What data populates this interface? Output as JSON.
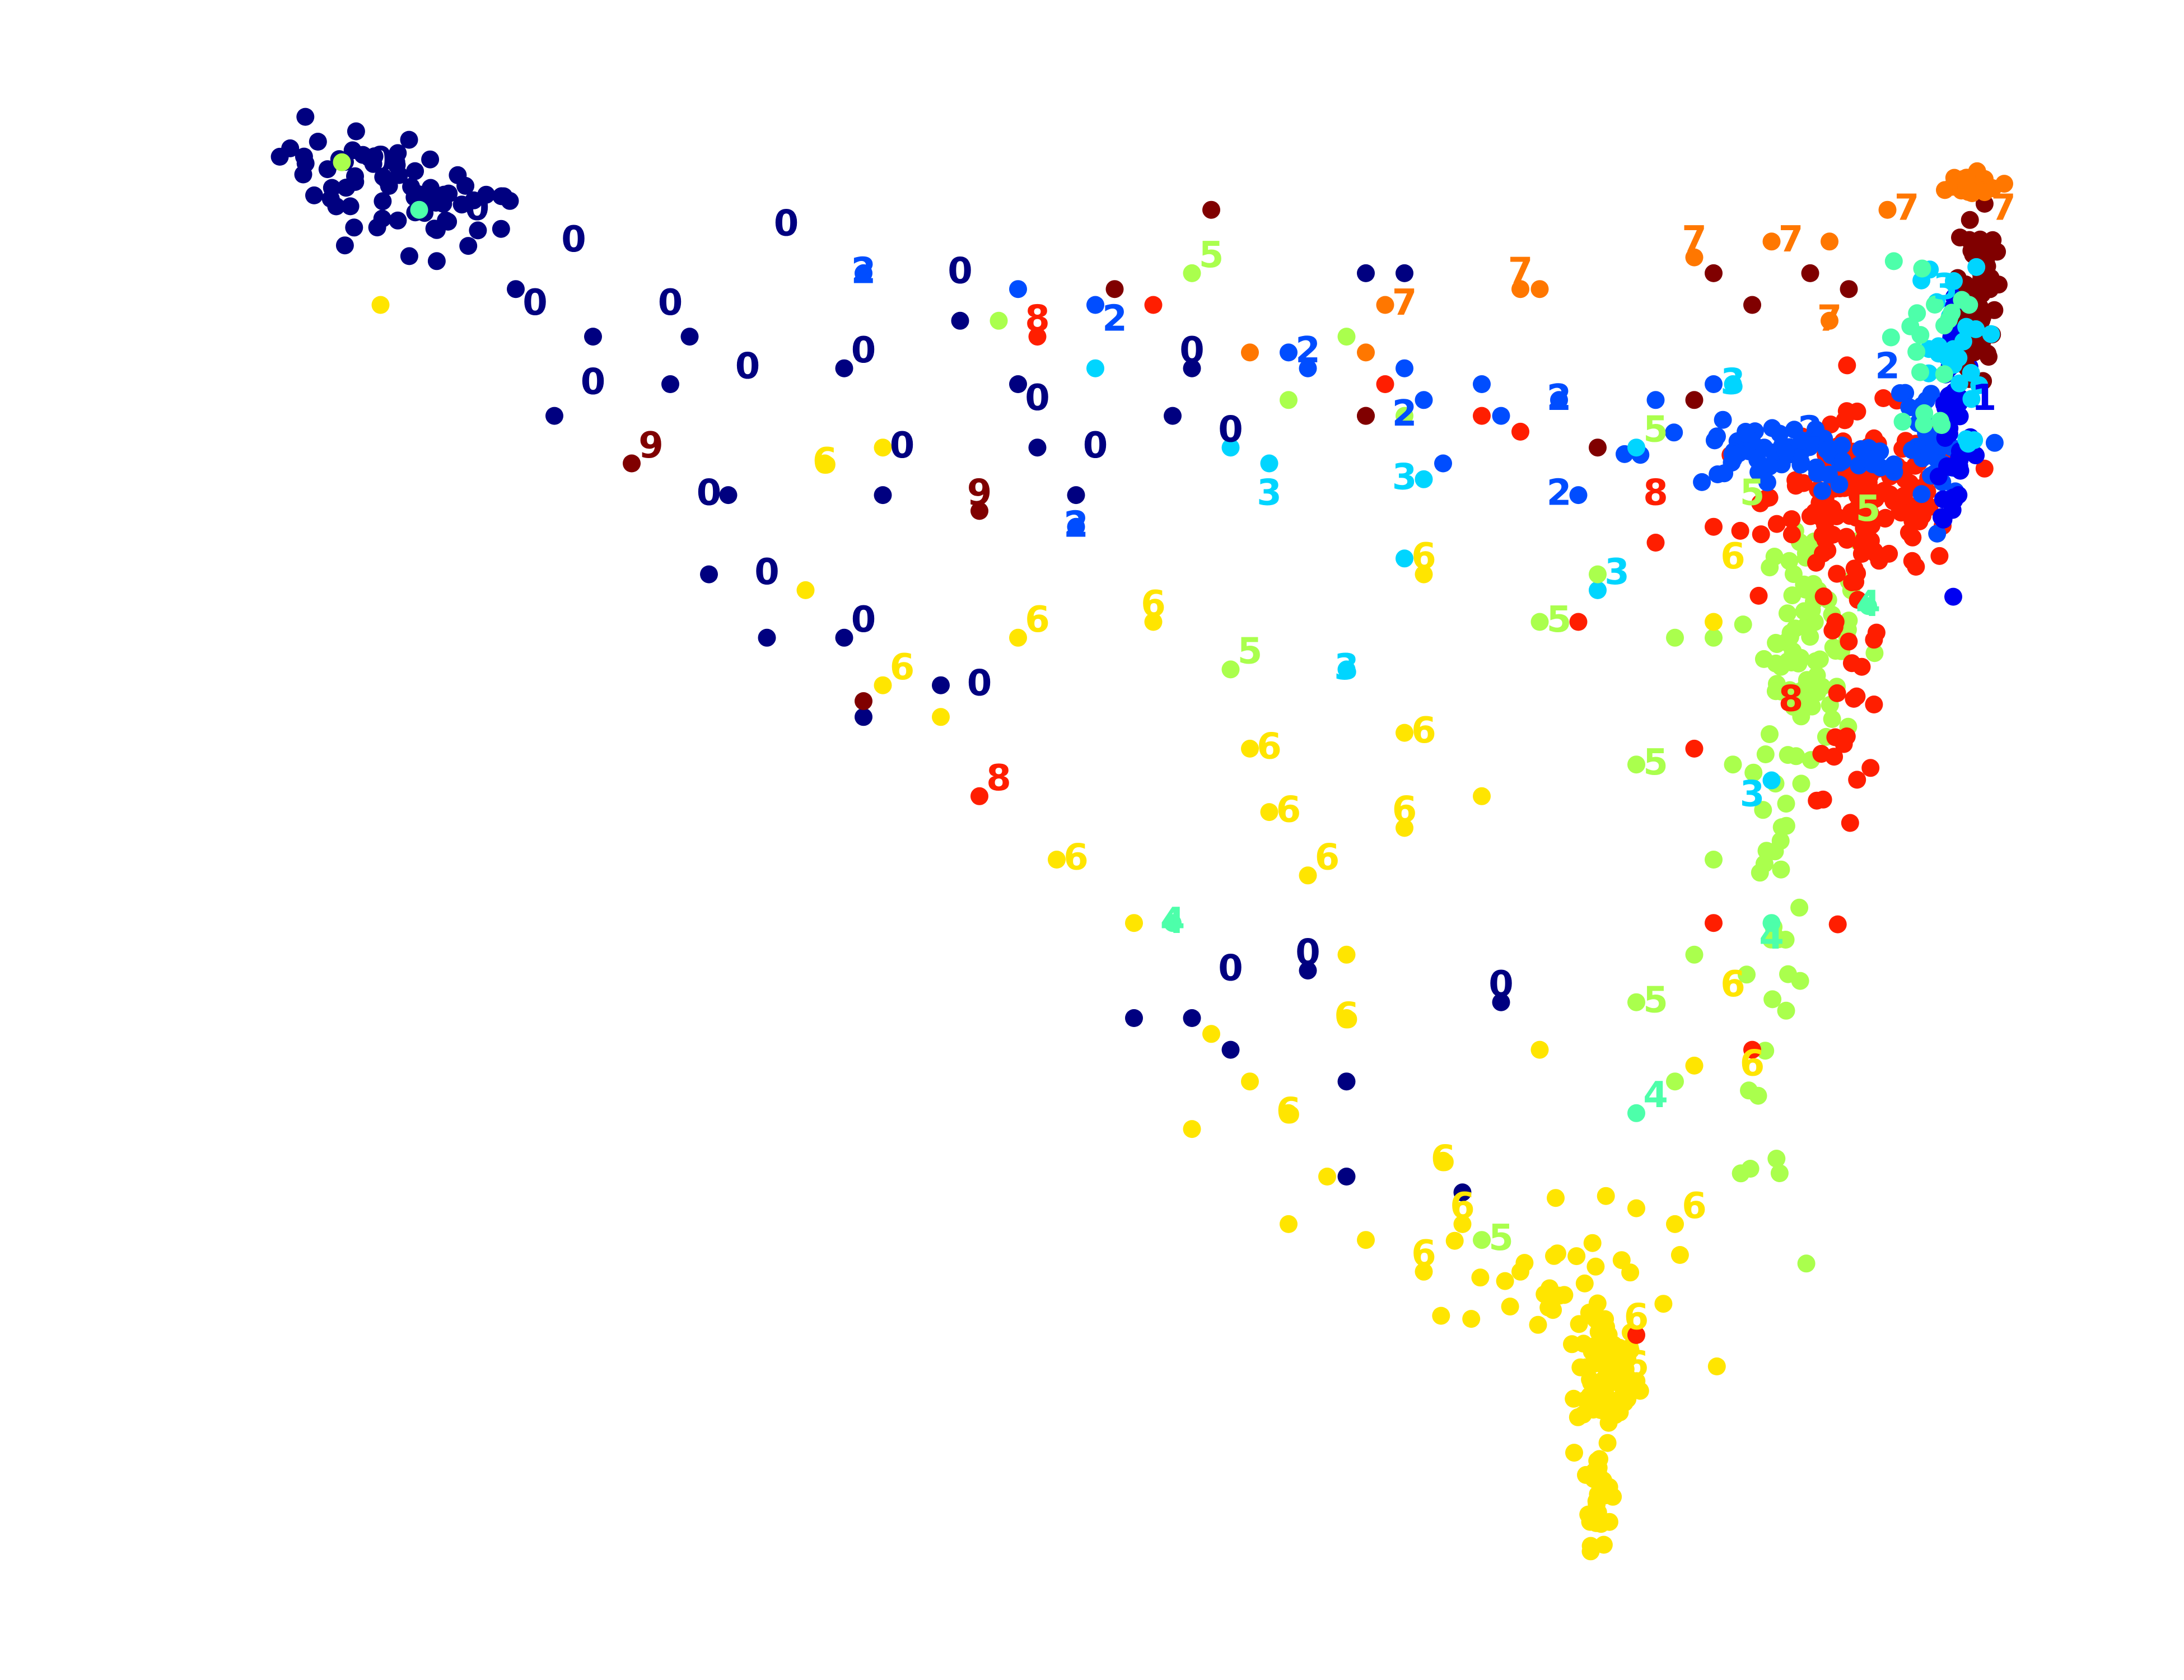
{
  "chart_data": {
    "type": "scatter",
    "title": "",
    "xlabel": "",
    "ylabel": "",
    "axes_visible": false,
    "grid": false,
    "legend": "none",
    "xlim": [
      0,
      100
    ],
    "ylim": [
      0,
      100
    ],
    "class_colors": {
      "0": "#000080",
      "1": "#0000f1",
      "2": "#004dff",
      "3": "#00d5ff",
      "4": "#4dffaa",
      "5": "#aaff4d",
      "6": "#ffe500",
      "7": "#ff7700",
      "8": "#ff1e00",
      "9": "#800000"
    },
    "clusters": [
      {
        "cls": "0",
        "cx": 12,
        "cy": 92,
        "sx": 3.2,
        "sy": 1.6,
        "n": 70,
        "rot": -28
      },
      {
        "cls": "6",
        "cx": 74.5,
        "cy": 17.5,
        "sx": 0.8,
        "sy": 1.8,
        "n": 90
      },
      {
        "cls": "6",
        "cx": 74,
        "cy": 10.5,
        "sx": 0.35,
        "sy": 1.8,
        "n": 30
      },
      {
        "cls": "6",
        "cx": 72,
        "cy": 23,
        "sx": 3,
        "sy": 2.5,
        "n": 30
      },
      {
        "cls": "5",
        "cx": 85,
        "cy": 64,
        "sx": 1.2,
        "sy": 3.5,
        "n": 80
      },
      {
        "cls": "5",
        "cx": 83,
        "cy": 45,
        "sx": 0.8,
        "sy": 8,
        "n": 35
      },
      {
        "cls": "8",
        "cx": 88,
        "cy": 73,
        "sx": 2.5,
        "sy": 2.5,
        "n": 160
      },
      {
        "cls": "8",
        "cx": 87,
        "cy": 62,
        "sx": 1,
        "sy": 4,
        "n": 30
      },
      {
        "cls": "2",
        "cx": 83.5,
        "cy": 75.5,
        "sx": 3.5,
        "sy": 1,
        "n": 70
      },
      {
        "cls": "2",
        "cx": 91,
        "cy": 76,
        "sx": 0.8,
        "sy": 3,
        "n": 30
      },
      {
        "cls": "1",
        "cx": 92.5,
        "cy": 78,
        "sx": 0.5,
        "sy": 4,
        "n": 50
      },
      {
        "cls": "9",
        "cx": 93.8,
        "cy": 86,
        "sx": 0.4,
        "sy": 3,
        "n": 55
      },
      {
        "cls": "7",
        "cx": 93,
        "cy": 92.5,
        "sx": 1,
        "sy": 0.4,
        "n": 30
      },
      {
        "cls": "3",
        "cx": 92,
        "cy": 82,
        "sx": 1,
        "sy": 3,
        "n": 25
      },
      {
        "cls": "4",
        "cx": 91,
        "cy": 82,
        "sx": 1,
        "sy": 3,
        "n": 20
      }
    ],
    "points": [
      {
        "x": 35,
        "y": 81,
        "cls": "0"
      },
      {
        "x": 41,
        "y": 84,
        "cls": "0"
      },
      {
        "x": 44,
        "y": 80,
        "cls": "0"
      },
      {
        "x": 47,
        "y": 73,
        "cls": "0"
      },
      {
        "x": 53,
        "y": 81,
        "cls": "0"
      },
      {
        "x": 29,
        "y": 73,
        "cls": "0"
      },
      {
        "x": 37,
        "y": 73,
        "cls": "0"
      },
      {
        "x": 31,
        "y": 64,
        "cls": "0"
      },
      {
        "x": 35,
        "y": 64,
        "cls": "0"
      },
      {
        "x": 40,
        "y": 61,
        "cls": "0"
      },
      {
        "x": 26,
        "y": 80,
        "cls": "0"
      },
      {
        "x": 22,
        "y": 83,
        "cls": "0"
      },
      {
        "x": 28,
        "y": 68,
        "cls": "0"
      },
      {
        "x": 50,
        "y": 40,
        "cls": "0"
      },
      {
        "x": 53,
        "y": 40,
        "cls": "0"
      },
      {
        "x": 55,
        "y": 38,
        "cls": "0"
      },
      {
        "x": 59,
        "y": 43,
        "cls": "0"
      },
      {
        "x": 61,
        "y": 36,
        "cls": "0"
      },
      {
        "x": 69,
        "y": 41,
        "cls": "0"
      },
      {
        "x": 18,
        "y": 86,
        "cls": "0"
      },
      {
        "x": 20,
        "y": 78,
        "cls": "0"
      },
      {
        "x": 45,
        "y": 76,
        "cls": "0"
      },
      {
        "x": 62,
        "y": 87,
        "cls": "0"
      },
      {
        "x": 64,
        "y": 87,
        "cls": "0"
      },
      {
        "x": 52,
        "y": 78,
        "cls": "0"
      },
      {
        "x": 27,
        "y": 83,
        "cls": "0"
      },
      {
        "x": 36,
        "y": 59,
        "cls": "0"
      },
      {
        "x": 61,
        "y": 30,
        "cls": "0"
      },
      {
        "x": 67,
        "y": 29,
        "cls": "0"
      },
      {
        "x": 36,
        "y": 87,
        "cls": "2"
      },
      {
        "x": 48,
        "y": 85,
        "cls": "2"
      },
      {
        "x": 58,
        "y": 82,
        "cls": "2"
      },
      {
        "x": 47,
        "y": 71,
        "cls": "2"
      },
      {
        "x": 59,
        "y": 81,
        "cls": "2"
      },
      {
        "x": 64,
        "y": 81,
        "cls": "2"
      },
      {
        "x": 65,
        "y": 79,
        "cls": "2"
      },
      {
        "x": 72,
        "y": 79,
        "cls": "2"
      },
      {
        "x": 73,
        "y": 73,
        "cls": "2"
      },
      {
        "x": 44,
        "y": 86,
        "cls": "2"
      },
      {
        "x": 68,
        "y": 80,
        "cls": "2"
      },
      {
        "x": 69,
        "y": 78,
        "cls": "2"
      },
      {
        "x": 66,
        "y": 75,
        "cls": "2"
      },
      {
        "x": 77,
        "y": 79,
        "cls": "2"
      },
      {
        "x": 80,
        "y": 80,
        "cls": "2"
      },
      {
        "x": 57,
        "y": 75,
        "cls": "3"
      },
      {
        "x": 65,
        "y": 74,
        "cls": "3"
      },
      {
        "x": 64,
        "y": 69,
        "cls": "3"
      },
      {
        "x": 61,
        "y": 62,
        "cls": "3"
      },
      {
        "x": 74,
        "y": 67,
        "cls": "3"
      },
      {
        "x": 81,
        "y": 80,
        "cls": "3"
      },
      {
        "x": 83,
        "y": 55,
        "cls": "3"
      },
      {
        "x": 48,
        "y": 81,
        "cls": "3"
      },
      {
        "x": 55,
        "y": 76,
        "cls": "3"
      },
      {
        "x": 76,
        "y": 76,
        "cls": "3"
      },
      {
        "x": 52,
        "y": 46,
        "cls": "4"
      },
      {
        "x": 76,
        "y": 34,
        "cls": "4"
      },
      {
        "x": 83,
        "y": 46,
        "cls": "4"
      },
      {
        "x": 88,
        "y": 66,
        "cls": "4"
      },
      {
        "x": 13,
        "y": 91,
        "cls": "4"
      },
      {
        "x": 53,
        "y": 87,
        "cls": "5"
      },
      {
        "x": 55,
        "y": 62,
        "cls": "5"
      },
      {
        "x": 71,
        "y": 65,
        "cls": "5"
      },
      {
        "x": 78,
        "y": 64,
        "cls": "5"
      },
      {
        "x": 76,
        "y": 56,
        "cls": "5"
      },
      {
        "x": 76,
        "y": 41,
        "cls": "5"
      },
      {
        "x": 68,
        "y": 26,
        "cls": "5"
      },
      {
        "x": 58,
        "y": 79,
        "cls": "5"
      },
      {
        "x": 64,
        "y": 78,
        "cls": "5"
      },
      {
        "x": 74,
        "y": 68,
        "cls": "5"
      },
      {
        "x": 80,
        "y": 64,
        "cls": "5"
      },
      {
        "x": 81,
        "y": 56,
        "cls": "5"
      },
      {
        "x": 80,
        "y": 50,
        "cls": "5"
      },
      {
        "x": 79,
        "y": 44,
        "cls": "5"
      },
      {
        "x": 78,
        "y": 36,
        "cls": "5"
      },
      {
        "x": 9,
        "y": 94,
        "cls": "5"
      },
      {
        "x": 43,
        "y": 84,
        "cls": "5"
      },
      {
        "x": 61,
        "y": 83,
        "cls": "5"
      },
      {
        "x": 34,
        "y": 75,
        "cls": "6"
      },
      {
        "x": 37,
        "y": 61,
        "cls": "6"
      },
      {
        "x": 44,
        "y": 64,
        "cls": "6"
      },
      {
        "x": 51,
        "y": 65,
        "cls": "6"
      },
      {
        "x": 56,
        "y": 57,
        "cls": "6"
      },
      {
        "x": 57,
        "y": 53,
        "cls": "6"
      },
      {
        "x": 46,
        "y": 50,
        "cls": "6"
      },
      {
        "x": 59,
        "y": 49,
        "cls": "6"
      },
      {
        "x": 65,
        "y": 68,
        "cls": "6"
      },
      {
        "x": 64,
        "y": 58,
        "cls": "6"
      },
      {
        "x": 64,
        "y": 52,
        "cls": "6"
      },
      {
        "x": 61,
        "y": 40,
        "cls": "6"
      },
      {
        "x": 58,
        "y": 34,
        "cls": "6"
      },
      {
        "x": 66,
        "y": 31,
        "cls": "6"
      },
      {
        "x": 67,
        "y": 27,
        "cls": "6"
      },
      {
        "x": 58,
        "y": 27,
        "cls": "6"
      },
      {
        "x": 65,
        "y": 24,
        "cls": "6"
      },
      {
        "x": 53,
        "y": 33,
        "cls": "6"
      },
      {
        "x": 33,
        "y": 67,
        "cls": "6"
      },
      {
        "x": 40,
        "y": 59,
        "cls": "6"
      },
      {
        "x": 50,
        "y": 46,
        "cls": "6"
      },
      {
        "x": 54,
        "y": 39,
        "cls": "6"
      },
      {
        "x": 61,
        "y": 44,
        "cls": "6"
      },
      {
        "x": 68,
        "y": 54,
        "cls": "6"
      },
      {
        "x": 71,
        "y": 38,
        "cls": "6"
      },
      {
        "x": 76,
        "y": 28,
        "cls": "6"
      },
      {
        "x": 79,
        "y": 37,
        "cls": "6"
      },
      {
        "x": 80,
        "y": 65,
        "cls": "6"
      },
      {
        "x": 11,
        "y": 85,
        "cls": "6"
      },
      {
        "x": 37,
        "y": 76,
        "cls": "6"
      },
      {
        "x": 78,
        "y": 27,
        "cls": "6"
      },
      {
        "x": 60,
        "y": 30,
        "cls": "6"
      },
      {
        "x": 70,
        "y": 24,
        "cls": "6"
      },
      {
        "x": 62,
        "y": 26,
        "cls": "6"
      },
      {
        "x": 56,
        "y": 36,
        "cls": "6"
      },
      {
        "x": 63,
        "y": 85,
        "cls": "7"
      },
      {
        "x": 70,
        "y": 86,
        "cls": "7"
      },
      {
        "x": 79,
        "y": 88,
        "cls": "7"
      },
      {
        "x": 83,
        "y": 89,
        "cls": "7"
      },
      {
        "x": 86,
        "y": 84,
        "cls": "7"
      },
      {
        "x": 89,
        "y": 91,
        "cls": "7"
      },
      {
        "x": 56,
        "y": 82,
        "cls": "7"
      },
      {
        "x": 62,
        "y": 82,
        "cls": "7"
      },
      {
        "x": 71,
        "y": 86,
        "cls": "7"
      },
      {
        "x": 86,
        "y": 89,
        "cls": "7"
      },
      {
        "x": 45,
        "y": 83,
        "cls": "8"
      },
      {
        "x": 42,
        "y": 54,
        "cls": "8"
      },
      {
        "x": 62,
        "y": 78,
        "cls": "8"
      },
      {
        "x": 70,
        "y": 77,
        "cls": "8"
      },
      {
        "x": 77,
        "y": 70,
        "cls": "8"
      },
      {
        "x": 80,
        "y": 71,
        "cls": "8"
      },
      {
        "x": 73,
        "y": 65,
        "cls": "8"
      },
      {
        "x": 79,
        "y": 57,
        "cls": "8"
      },
      {
        "x": 80,
        "y": 46,
        "cls": "8"
      },
      {
        "x": 82,
        "y": 38,
        "cls": "8"
      },
      {
        "x": 76,
        "y": 20,
        "cls": "8"
      },
      {
        "x": 51,
        "y": 85,
        "cls": "8"
      },
      {
        "x": 63,
        "y": 80,
        "cls": "8"
      },
      {
        "x": 68,
        "y": 78,
        "cls": "8"
      },
      {
        "x": 24,
        "y": 75,
        "cls": "9"
      },
      {
        "x": 42,
        "y": 72,
        "cls": "9"
      },
      {
        "x": 36,
        "y": 60,
        "cls": "9"
      },
      {
        "x": 49,
        "y": 86,
        "cls": "9"
      },
      {
        "x": 54,
        "y": 91,
        "cls": "9"
      },
      {
        "x": 62,
        "y": 78,
        "cls": "9"
      },
      {
        "x": 80,
        "y": 87,
        "cls": "9"
      },
      {
        "x": 82,
        "y": 85,
        "cls": "9"
      },
      {
        "x": 85,
        "y": 87,
        "cls": "9"
      },
      {
        "x": 79,
        "y": 79,
        "cls": "9"
      },
      {
        "x": 74,
        "y": 76,
        "cls": "9"
      },
      {
        "x": 87,
        "y": 86,
        "cls": "9"
      }
    ],
    "annotations": [
      {
        "text": "0",
        "x": 11,
        "y": 94
      },
      {
        "text": "0",
        "x": 16,
        "y": 91
      },
      {
        "text": "0",
        "x": 21,
        "y": 89
      },
      {
        "text": "0",
        "x": 32,
        "y": 90
      },
      {
        "text": "0",
        "x": 26,
        "y": 85
      },
      {
        "text": "0",
        "x": 19,
        "y": 85
      },
      {
        "text": "0",
        "x": 22,
        "y": 80
      },
      {
        "text": "0",
        "x": 30,
        "y": 81
      },
      {
        "text": "0",
        "x": 36,
        "y": 82
      },
      {
        "text": "0",
        "x": 41,
        "y": 87
      },
      {
        "text": "0",
        "x": 45,
        "y": 79
      },
      {
        "text": "0",
        "x": 53,
        "y": 82
      },
      {
        "text": "0",
        "x": 38,
        "y": 76
      },
      {
        "text": "0",
        "x": 48,
        "y": 76
      },
      {
        "text": "0",
        "x": 55,
        "y": 77
      },
      {
        "text": "0",
        "x": 28,
        "y": 73
      },
      {
        "text": "0",
        "x": 31,
        "y": 68
      },
      {
        "text": "0",
        "x": 36,
        "y": 65
      },
      {
        "text": "0",
        "x": 42,
        "y": 61
      },
      {
        "text": "0",
        "x": 55,
        "y": 43
      },
      {
        "text": "0",
        "x": 59,
        "y": 44
      },
      {
        "text": "0",
        "x": 69,
        "y": 42
      },
      {
        "text": "2",
        "x": 36,
        "y": 87
      },
      {
        "text": "2",
        "x": 49,
        "y": 84
      },
      {
        "text": "2",
        "x": 59,
        "y": 82
      },
      {
        "text": "2",
        "x": 47,
        "y": 71
      },
      {
        "text": "2",
        "x": 64,
        "y": 78
      },
      {
        "text": "2",
        "x": 72,
        "y": 79
      },
      {
        "text": "2",
        "x": 72,
        "y": 73
      },
      {
        "text": "2",
        "x": 85,
        "y": 77
      },
      {
        "text": "2",
        "x": 89,
        "y": 81
      },
      {
        "text": "3",
        "x": 57,
        "y": 73
      },
      {
        "text": "3",
        "x": 64,
        "y": 74
      },
      {
        "text": "3",
        "x": 61,
        "y": 62
      },
      {
        "text": "3",
        "x": 75,
        "y": 68
      },
      {
        "text": "3",
        "x": 81,
        "y": 80
      },
      {
        "text": "3",
        "x": 92,
        "y": 86
      },
      {
        "text": "3",
        "x": 82,
        "y": 54
      },
      {
        "text": "4",
        "x": 52,
        "y": 46
      },
      {
        "text": "4",
        "x": 77,
        "y": 35
      },
      {
        "text": "4",
        "x": 83,
        "y": 45
      },
      {
        "text": "4",
        "x": 88,
        "y": 66
      },
      {
        "text": "5",
        "x": 54,
        "y": 88
      },
      {
        "text": "5",
        "x": 56,
        "y": 63
      },
      {
        "text": "5",
        "x": 72,
        "y": 65
      },
      {
        "text": "5",
        "x": 77,
        "y": 77
      },
      {
        "text": "5",
        "x": 82,
        "y": 73
      },
      {
        "text": "5",
        "x": 77,
        "y": 56
      },
      {
        "text": "5",
        "x": 77,
        "y": 41
      },
      {
        "text": "5",
        "x": 69,
        "y": 26
      },
      {
        "text": "5",
        "x": 88,
        "y": 72
      },
      {
        "text": "6",
        "x": 34,
        "y": 75
      },
      {
        "text": "6",
        "x": 38,
        "y": 62
      },
      {
        "text": "6",
        "x": 45,
        "y": 65
      },
      {
        "text": "6",
        "x": 51,
        "y": 66
      },
      {
        "text": "6",
        "x": 57,
        "y": 57
      },
      {
        "text": "6",
        "x": 58,
        "y": 53
      },
      {
        "text": "6",
        "x": 47,
        "y": 50
      },
      {
        "text": "6",
        "x": 60,
        "y": 50
      },
      {
        "text": "6",
        "x": 65,
        "y": 69
      },
      {
        "text": "6",
        "x": 65,
        "y": 58
      },
      {
        "text": "6",
        "x": 64,
        "y": 53
      },
      {
        "text": "6",
        "x": 61,
        "y": 40
      },
      {
        "text": "6",
        "x": 58,
        "y": 34
      },
      {
        "text": "6",
        "x": 66,
        "y": 31
      },
      {
        "text": "6",
        "x": 67,
        "y": 28
      },
      {
        "text": "6",
        "x": 65,
        "y": 25
      },
      {
        "text": "6",
        "x": 81,
        "y": 69
      },
      {
        "text": "6",
        "x": 82,
        "y": 37
      },
      {
        "text": "6",
        "x": 79,
        "y": 28
      },
      {
        "text": "6",
        "x": 76,
        "y": 21
      },
      {
        "text": "6",
        "x": 76,
        "y": 18
      },
      {
        "text": "6",
        "x": 81,
        "y": 42
      },
      {
        "text": "7",
        "x": 64,
        "y": 85
      },
      {
        "text": "7",
        "x": 70,
        "y": 87
      },
      {
        "text": "7",
        "x": 79,
        "y": 89
      },
      {
        "text": "7",
        "x": 84,
        "y": 89
      },
      {
        "text": "7",
        "x": 86,
        "y": 84
      },
      {
        "text": "7",
        "x": 90,
        "y": 91
      },
      {
        "text": "7",
        "x": 95,
        "y": 91
      },
      {
        "text": "8",
        "x": 45,
        "y": 84
      },
      {
        "text": "8",
        "x": 43,
        "y": 55
      },
      {
        "text": "8",
        "x": 77,
        "y": 73
      },
      {
        "text": "8",
        "x": 84,
        "y": 60
      },
      {
        "text": "9",
        "x": 25,
        "y": 76
      },
      {
        "text": "9",
        "x": 42,
        "y": 73
      },
      {
        "text": "1",
        "x": 94,
        "y": 79
      }
    ]
  }
}
